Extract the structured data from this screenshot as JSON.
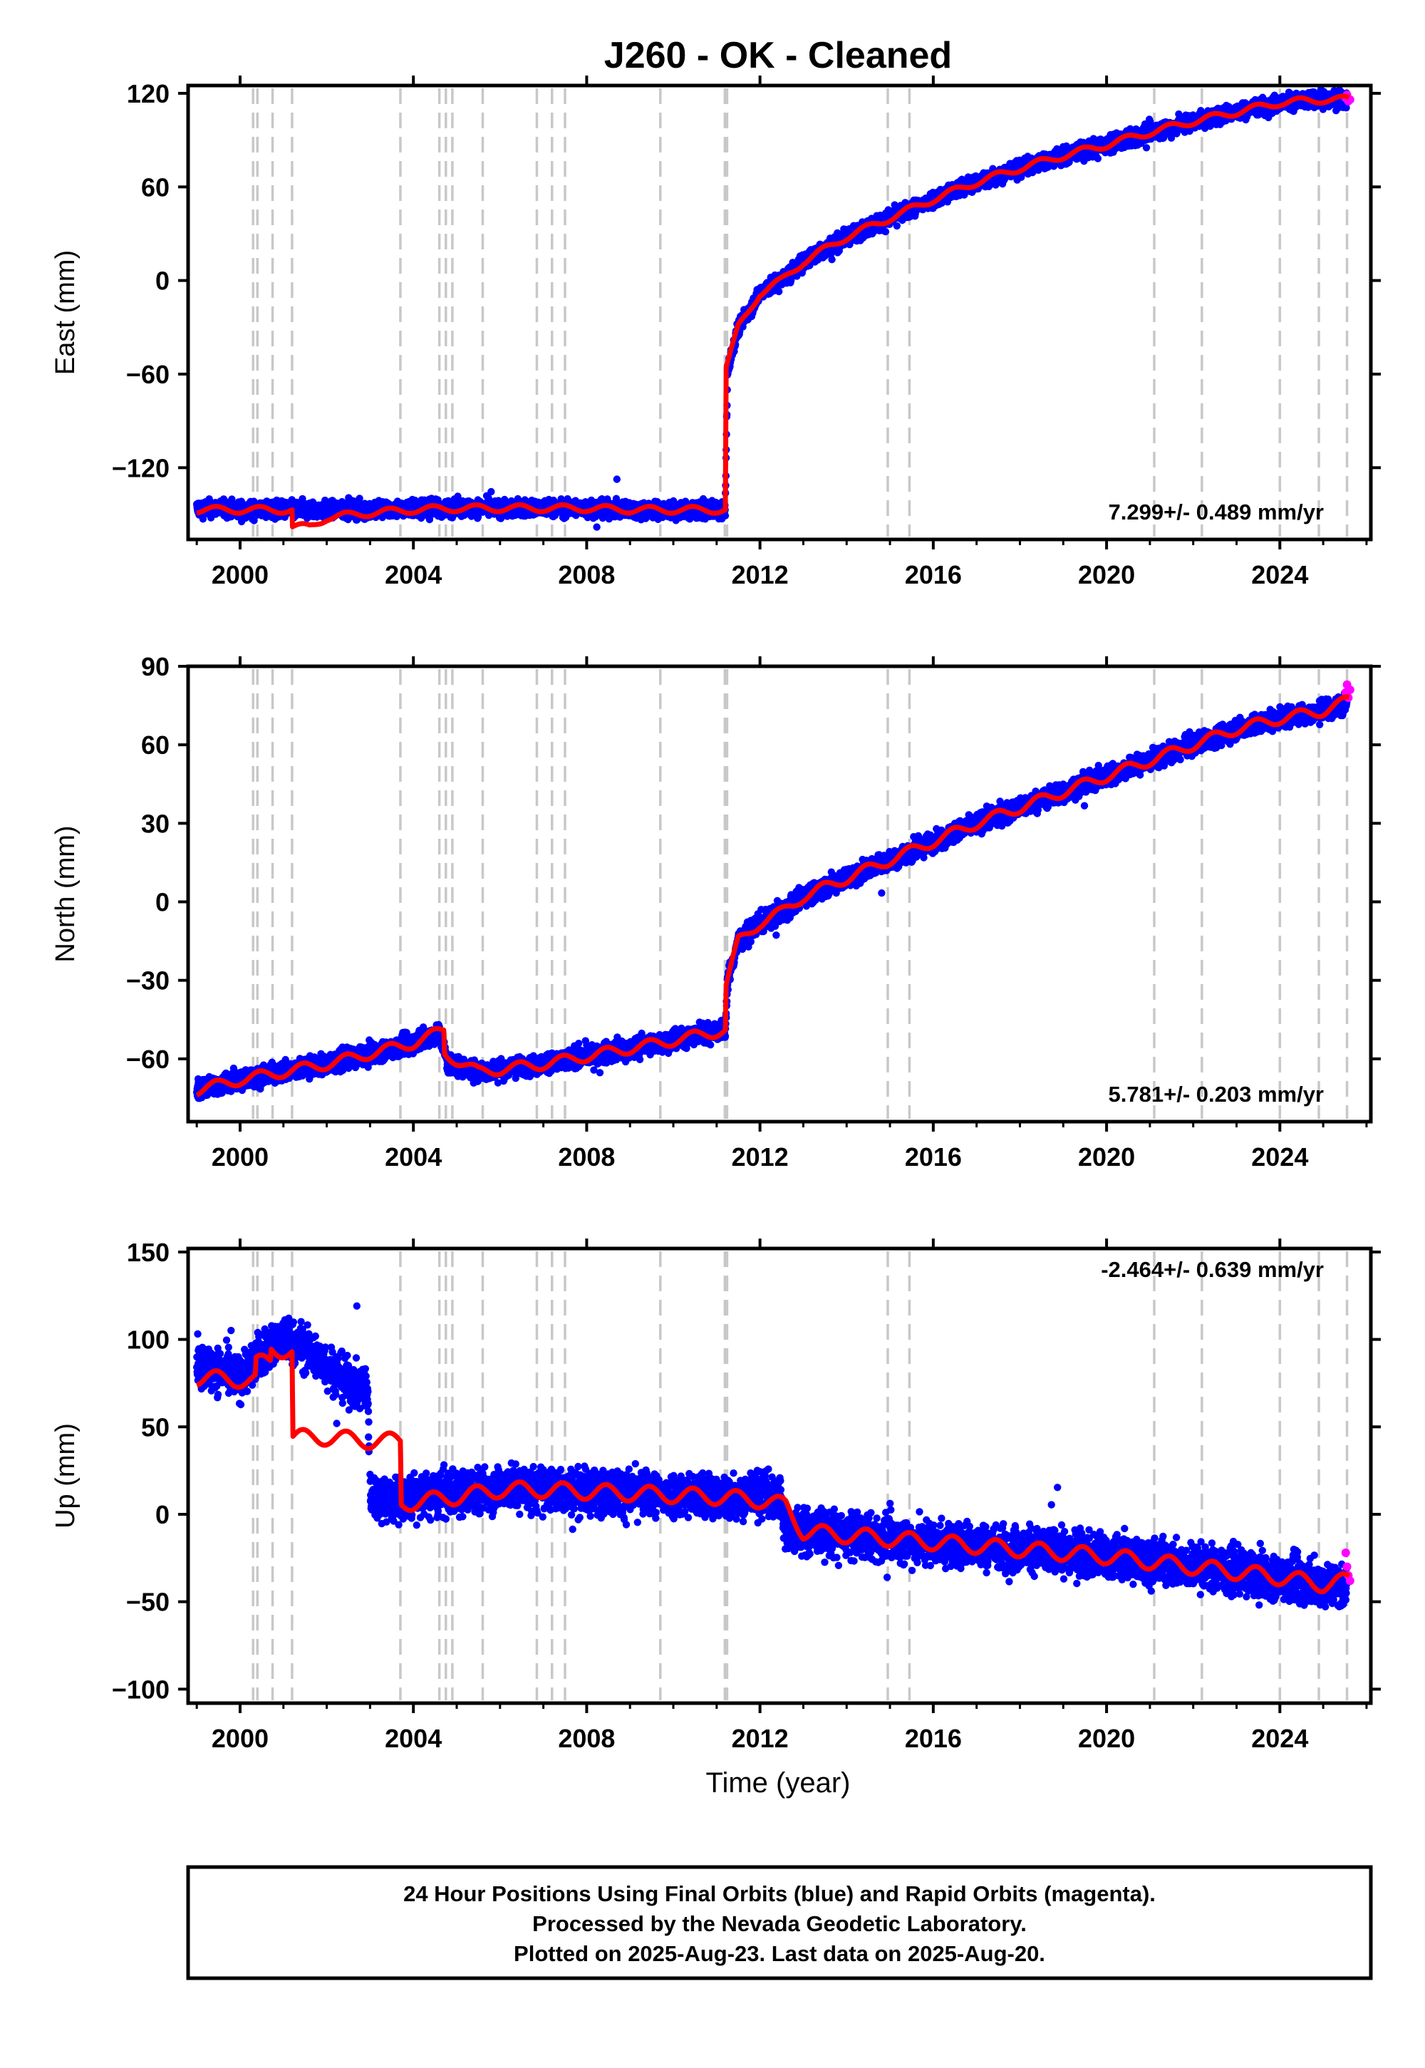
{
  "title": "J260  - OK - Cleaned",
  "colors": {
    "final_points": "#0000ff",
    "rapid_points": "#ff00ff",
    "model_line": "#ff0000",
    "event_lines": "#c8c8c8",
    "axes": "#000000"
  },
  "chart_data": [
    {
      "type": "scatter",
      "panel": "east",
      "ylabel": "East (mm)",
      "xlim": [
        1998.8,
        2026.1
      ],
      "ylim": [
        -166,
        125
      ],
      "yticks": [
        "120",
        "60",
        "0",
        "−60",
        "−120"
      ],
      "ytick_values": [
        120,
        60,
        0,
        -60,
        -120
      ],
      "xticks": [
        "2000",
        "2004",
        "2008",
        "2012",
        "2016",
        "2020",
        "2024"
      ],
      "xtick_values": [
        2000,
        2004,
        2008,
        2012,
        2016,
        2020,
        2024
      ],
      "rate_label": "7.299+/- 0.489 mm/yr",
      "rate_position": "bottom-right",
      "series": [
        {
          "name": "Final Orbits",
          "color": "#0000ff",
          "scatter": 5,
          "x": [
            1999.0,
            1999.5,
            2000.0,
            2000.5,
            2001.0,
            2001.5,
            2002.0,
            2003.0,
            2004.0,
            2005.0,
            2006.0,
            2007.0,
            2008.0,
            2009.0,
            2010.0,
            2011.0,
            2011.2,
            2011.25,
            2011.5,
            2012.0,
            2012.5,
            2013.0,
            2014.0,
            2015.0,
            2016.0,
            2017.0,
            2018.0,
            2019.0,
            2020.0,
            2021.0,
            2022.0,
            2023.0,
            2024.0,
            2025.0,
            2025.55
          ],
          "y": [
            -146,
            -146,
            -147,
            -147,
            -147,
            -147,
            -147,
            -147,
            -146,
            -146,
            -146,
            -146,
            -146,
            -147,
            -147,
            -147,
            -147,
            -58,
            -30,
            -8,
            0,
            12,
            28,
            40,
            52,
            63,
            72,
            80,
            87,
            95,
            102,
            108,
            114,
            116,
            116
          ]
        },
        {
          "name": "Rapid Orbits",
          "color": "#ff00ff",
          "scatter": 2,
          "x": [
            2025.52,
            2025.55,
            2025.58,
            2025.62
          ],
          "y": [
            117,
            119,
            115,
            116
          ]
        }
      ],
      "model": {
        "x": [
          1999.0,
          2001.2,
          2001.21,
          2001.6,
          2002.0,
          2003.0,
          2004.0,
          2005.0,
          2006.0,
          2007.0,
          2008.0,
          2009.0,
          2010.0,
          2011.2,
          2011.22,
          2011.5,
          2012.0,
          2012.5,
          2013.0,
          2014.0,
          2015.0,
          2016.0,
          2017.0,
          2018.0,
          2019.0,
          2020.0,
          2021.0,
          2022.0,
          2023.0,
          2024.0,
          2025.0,
          2025.6
        ],
        "y": [
          -147,
          -147,
          -158,
          -158,
          -152,
          -149,
          -147,
          -146,
          -146,
          -146,
          -146,
          -147,
          -147,
          -147,
          -56,
          -30,
          -8,
          0,
          12,
          28,
          40,
          52,
          63,
          72,
          80,
          87,
          95,
          102,
          108,
          114,
          116,
          116
        ],
        "seasonal": 2.2
      }
    },
    {
      "type": "scatter",
      "panel": "north",
      "ylabel": "North (mm)",
      "xlim": [
        1998.8,
        2026.1
      ],
      "ylim": [
        -84,
        90
      ],
      "yticks": [
        "90",
        "60",
        "30",
        "0",
        "−30",
        "−60"
      ],
      "ytick_values": [
        90,
        60,
        30,
        0,
        -30,
        -60
      ],
      "xticks": [
        "2000",
        "2004",
        "2008",
        "2012",
        "2016",
        "2020",
        "2024"
      ],
      "xtick_values": [
        2000,
        2004,
        2008,
        2012,
        2016,
        2020,
        2024
      ],
      "rate_label": "5.781+/- 0.203 mm/yr",
      "rate_position": "bottom-right",
      "series": [
        {
          "name": "Final Orbits",
          "color": "#0000ff",
          "scatter": 3.5,
          "x": [
            1999.0,
            2000.0,
            2001.0,
            2002.0,
            2003.0,
            2004.0,
            2004.6,
            2004.8,
            2005.5,
            2006.0,
            2007.0,
            2008.0,
            2009.0,
            2010.0,
            2011.0,
            2011.2,
            2011.25,
            2011.5,
            2012.0,
            2012.5,
            2013.0,
            2014.0,
            2015.0,
            2016.0,
            2017.0,
            2018.0,
            2019.0,
            2020.0,
            2021.0,
            2022.0,
            2023.0,
            2024.0,
            2025.0,
            2025.55
          ],
          "y": [
            -72,
            -68,
            -65,
            -62,
            -58,
            -54,
            -50,
            -62,
            -65,
            -64,
            -62,
            -59,
            -56,
            -53,
            -49,
            -49,
            -30,
            -15,
            -8,
            -4,
            2,
            9,
            16,
            23,
            30,
            36,
            42,
            48,
            54,
            60,
            66,
            70,
            73,
            76
          ]
        },
        {
          "name": "Rapid Orbits",
          "color": "#ff00ff",
          "scatter": 2,
          "x": [
            2025.52,
            2025.55,
            2025.58,
            2025.62
          ],
          "y": [
            80,
            83,
            78,
            81
          ]
        }
      ],
      "model": {
        "x": [
          1999.0,
          2000.0,
          2001.0,
          2002.0,
          2003.0,
          2004.0,
          2004.7,
          2004.72,
          2005.5,
          2006.0,
          2007.0,
          2008.0,
          2009.0,
          2010.0,
          2011.2,
          2011.22,
          2011.5,
          2012.0,
          2012.5,
          2013.0,
          2014.0,
          2015.0,
          2016.0,
          2017.0,
          2018.0,
          2019.0,
          2020.0,
          2021.0,
          2022.0,
          2023.0,
          2024.0,
          2025.0,
          2025.6
        ],
        "y": [
          -72,
          -68,
          -65,
          -62,
          -58,
          -54,
          -49,
          -58,
          -65,
          -64,
          -62,
          -59,
          -56,
          -53,
          -49,
          -32,
          -15,
          -8,
          -4,
          2,
          9,
          16,
          23,
          30,
          36,
          42,
          48,
          54,
          60,
          66,
          70,
          73,
          77
        ],
        "seasonal": 2.0
      }
    },
    {
      "type": "scatter",
      "panel": "up",
      "ylabel": "Up (mm)",
      "xlabel": "Time (year)",
      "xlim": [
        1998.8,
        2026.1
      ],
      "ylim": [
        -108,
        152
      ],
      "yticks": [
        "150",
        "100",
        "50",
        "0",
        "−50",
        "−100"
      ],
      "ytick_values": [
        150,
        100,
        50,
        0,
        -50,
        -100
      ],
      "xticks": [
        "2000",
        "2004",
        "2008",
        "2012",
        "2016",
        "2020",
        "2024"
      ],
      "xtick_values": [
        2000,
        2004,
        2008,
        2012,
        2016,
        2020,
        2024
      ],
      "rate_label": "-2.464+/- 0.639 mm/yr",
      "rate_position": "top-right",
      "series": [
        {
          "name": "Final Orbits",
          "color": "#0000ff",
          "scatter": 12,
          "x": [
            1999.0,
            1999.5,
            2000.0,
            2000.5,
            2001.0,
            2001.5,
            2002.0,
            2002.5,
            2002.95,
            2003.0,
            2003.5,
            2004.0,
            2005.0,
            2006.0,
            2007.0,
            2008.0,
            2009.0,
            2010.0,
            2011.0,
            2012.0,
            2012.5,
            2012.55,
            2013.0,
            2014.0,
            2015.0,
            2016.0,
            2017.0,
            2018.0,
            2019.0,
            2020.0,
            2021.0,
            2022.0,
            2023.0,
            2024.0,
            2025.0,
            2025.55
          ],
          "y": [
            85,
            82,
            78,
            92,
            100,
            95,
            85,
            75,
            70,
            12,
            8,
            10,
            12,
            15,
            14,
            13,
            12,
            11,
            10,
            12,
            10,
            -8,
            -10,
            -12,
            -14,
            -16,
            -18,
            -20,
            -22,
            -24,
            -27,
            -30,
            -33,
            -36,
            -40,
            -42
          ]
        },
        {
          "name": "Rapid Orbits",
          "color": "#ff00ff",
          "scatter": 4,
          "x": [
            2025.52,
            2025.55,
            2025.58,
            2025.62
          ],
          "y": [
            -22,
            -30,
            -35,
            -38
          ]
        }
      ],
      "model": {
        "x": [
          1999.0,
          2000.0,
          2000.35,
          2000.37,
          2000.7,
          2000.72,
          2001.2,
          2001.22,
          2002.0,
          2003.0,
          2003.7,
          2003.72,
          2005.0,
          2006.0,
          2007.0,
          2008.0,
          2009.0,
          2010.0,
          2011.0,
          2012.0,
          2012.6,
          2013.0,
          2014.0,
          2015.0,
          2016.0,
          2017.0,
          2018.0,
          2019.0,
          2020.0,
          2021.0,
          2022.0,
          2023.0,
          2024.0,
          2025.0,
          2025.6
        ],
        "y": [
          78,
          77,
          76,
          86,
          88,
          95,
          93,
          44,
          44,
          42,
          42,
          6,
          10,
          14,
          14,
          13,
          12,
          11,
          10,
          8,
          5,
          -10,
          -12,
          -14,
          -16,
          -18,
          -20,
          -22,
          -24,
          -27,
          -30,
          -33,
          -36,
          -40,
          -38
        ],
        "seasonal": 4.5
      }
    }
  ],
  "event_lines_x": [
    2000.3,
    2000.4,
    2000.75,
    2001.2,
    2003.7,
    2004.6,
    2004.75,
    2004.9,
    2005.6,
    2006.85,
    2007.2,
    2007.5,
    2009.7,
    2011.19,
    2011.24,
    2014.95,
    2015.45,
    2021.1,
    2022.2,
    2024.0,
    2024.9,
    2025.55
  ],
  "footer": {
    "line1": "24 Hour Positions Using Final Orbits (blue) and Rapid Orbits (magenta).",
    "line2": "Processed by the Nevada Geodetic Laboratory.",
    "line3": "Plotted on 2025-Aug-23. Last data on 2025-Aug-20."
  }
}
